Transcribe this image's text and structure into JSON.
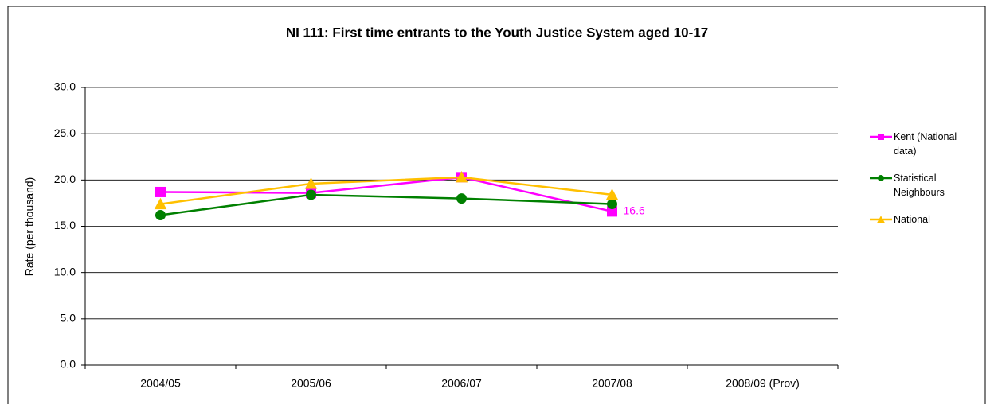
{
  "chart_data": {
    "type": "line",
    "title": "NI 111: First time entrants to the Youth Justice System aged 10-17",
    "y_label": "Rate (per thousand)",
    "categories": [
      "2004/05",
      "2005/06",
      "2006/07",
      "2007/08",
      "2008/09 (Prov)"
    ],
    "series": [
      {
        "name": "Kent (National data)",
        "color": "#ff00ff",
        "marker": "square",
        "label_last": true,
        "values": [
          18.7,
          18.6,
          20.3,
          16.6,
          null
        ]
      },
      {
        "name": "Statistical Neighbours",
        "color": "#008000",
        "marker": "circle",
        "values": [
          16.2,
          18.4,
          18.0,
          17.4,
          null
        ]
      },
      {
        "name": "National",
        "color": "#ffc000",
        "marker": "triangle",
        "values": [
          17.4,
          19.6,
          20.3,
          18.4,
          null
        ]
      }
    ],
    "ylim": [
      0,
      30
    ],
    "yticks": [
      {
        "value": 0,
        "label": "0.0"
      },
      {
        "value": 5,
        "label": "5.0"
      },
      {
        "value": 10,
        "label": "10.0"
      },
      {
        "value": 15,
        "label": "15.0"
      },
      {
        "value": 20,
        "label": "20.0"
      },
      {
        "value": 25,
        "label": "25.0"
      },
      {
        "value": 30,
        "label": "30.0"
      }
    ],
    "grid": true
  }
}
